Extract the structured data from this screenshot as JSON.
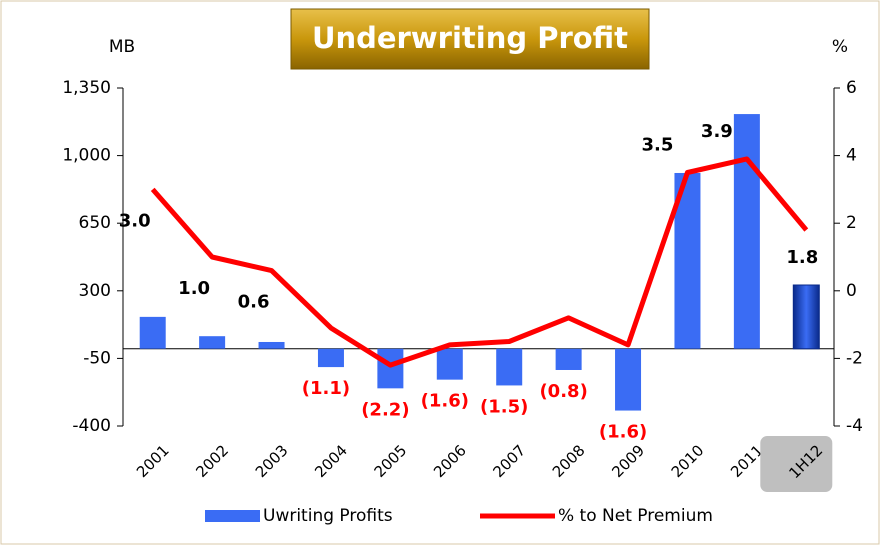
{
  "chart_data": {
    "type": "bar_line",
    "title": "Underwriting Profit",
    "y_label": "MB",
    "y2_label": "%",
    "categories": [
      "2001",
      "2002",
      "2003",
      "2004",
      "2005",
      "2006",
      "2007",
      "2008",
      "2009",
      "2010",
      "2011",
      "1H12"
    ],
    "series": [
      {
        "name": "Uwriting Profits",
        "type": "bar",
        "color": "#3a6cf4",
        "axis": "y",
        "values": [
          165,
          65,
          35,
          -95,
          -205,
          -160,
          -190,
          -110,
          -320,
          910,
          1215,
          330
        ]
      },
      {
        "name": "% to Net Premium",
        "type": "line",
        "color": "#ff0000",
        "axis": "y2",
        "values": [
          3.0,
          1.0,
          0.6,
          -1.1,
          -2.2,
          -1.6,
          -1.5,
          -0.8,
          -1.6,
          3.5,
          3.9,
          1.8
        ],
        "value_labels": [
          "3.0",
          "1.0",
          "0.6",
          "(1.1)",
          "(2.2)",
          "(1.6)",
          "(1.5)",
          "(0.8)",
          "(1.6)",
          "3.5",
          "3.9",
          "1.8"
        ]
      }
    ],
    "ylim": [
      -400,
      1350
    ],
    "yticks": [
      -400,
      -50,
      300,
      650,
      {
        "value": 1000,
        "label": "1,000"
      },
      {
        "value": 1350,
        "label": "1,350"
      }
    ],
    "y2lim": [
      -4,
      6
    ],
    "y2ticks": [
      -4,
      -2,
      0,
      2,
      4,
      6
    ],
    "legend": "bottom"
  }
}
